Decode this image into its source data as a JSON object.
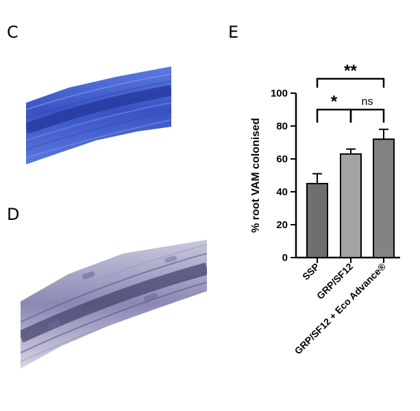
{
  "panels": {
    "c": "C",
    "d": "D",
    "e": "E"
  },
  "micrographs": [
    {
      "panel": "C",
      "stain_color": "#3f5bd0"
    },
    {
      "panel": "D",
      "stain_color": "#6a6aa2"
    }
  ],
  "chart_data": {
    "type": "bar",
    "categories": [
      "SSP",
      "GRP/SF12",
      "GRP/SF12 + Eco Advance®"
    ],
    "values": [
      45,
      63,
      72
    ],
    "errors": [
      6,
      3,
      6
    ],
    "bar_colors": [
      "#6f6f6f",
      "#a3a3a3",
      "#838383"
    ],
    "title": "",
    "xlabel": "",
    "ylabel": "% root VAM colonised",
    "ylim": [
      0,
      100
    ],
    "yticks": [
      0,
      20,
      40,
      60,
      80,
      100
    ],
    "grid": false,
    "significance": [
      {
        "from": 0,
        "to": 1,
        "label": "*"
      },
      {
        "from": 1,
        "to": 2,
        "label": "ns"
      },
      {
        "from": 0,
        "to": 2,
        "label": "**"
      }
    ]
  }
}
